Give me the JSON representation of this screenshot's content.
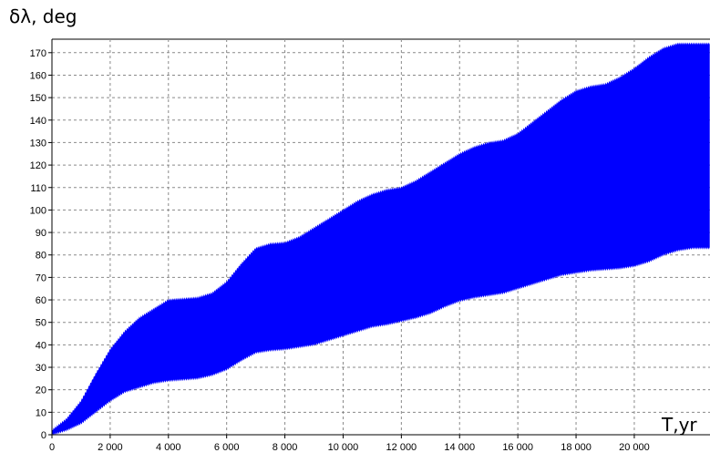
{
  "chart_data": {
    "type": "area",
    "title": "",
    "ylabel": "δλ, deg",
    "xlabel": "T,yr",
    "xlim": [
      0,
      22600
    ],
    "ylim": [
      0,
      176
    ],
    "grid": true,
    "fill_color": "#0000ff",
    "x_ticks": [
      0,
      2000,
      4000,
      6000,
      8000,
      10000,
      12000,
      14000,
      16000,
      18000,
      20000
    ],
    "x_tick_labels": [
      "0",
      "2 000",
      "4 000",
      "6 000",
      "8 000",
      "10 000",
      "12 000",
      "14 000",
      "16 000",
      "18 000",
      "20 000"
    ],
    "y_ticks": [
      0,
      10,
      20,
      30,
      40,
      50,
      60,
      70,
      80,
      90,
      100,
      110,
      120,
      130,
      140,
      150,
      160,
      170
    ],
    "y_tick_labels": [
      "0",
      "10",
      "20",
      "30",
      "40",
      "50",
      "60",
      "70",
      "80",
      "90",
      "100",
      "110",
      "120",
      "130",
      "140",
      "150",
      "160",
      "170"
    ],
    "series": [
      {
        "x": [
          0,
          500,
          1000,
          1500,
          2000,
          2500,
          3000,
          3500,
          4000,
          4500,
          5000,
          5500,
          6000,
          6500,
          7000,
          7500,
          8000,
          8500,
          9000,
          9500,
          10000,
          10500,
          11000,
          11500,
          12000,
          12500,
          13000,
          13500,
          14000,
          14500,
          15000,
          15500,
          16000,
          16500,
          17000,
          17500,
          18000,
          18500,
          19000,
          19500,
          20000,
          20500,
          21000,
          21500,
          22000,
          22600
        ],
        "upper": [
          2,
          7,
          15,
          27,
          38,
          46,
          52,
          56,
          60,
          60.5,
          61,
          63,
          68,
          76,
          83,
          85,
          85.5,
          88,
          92,
          96,
          100,
          104,
          107,
          109,
          110,
          113,
          117,
          121,
          125,
          128,
          130,
          131,
          134,
          139,
          144,
          149,
          153,
          155,
          156,
          159,
          163,
          168,
          172,
          174,
          174,
          174
        ],
        "lower": [
          0,
          2,
          5,
          10,
          15,
          19,
          21,
          23,
          24,
          24.5,
          25,
          26.5,
          29,
          33,
          36.5,
          37.5,
          38,
          39,
          40,
          42,
          44,
          46,
          48,
          49,
          50.5,
          52,
          54,
          57,
          59.5,
          61,
          62,
          63,
          65,
          67,
          69,
          71,
          72,
          73,
          73.5,
          74,
          75,
          77,
          80,
          82,
          83,
          83
        ]
      }
    ]
  }
}
